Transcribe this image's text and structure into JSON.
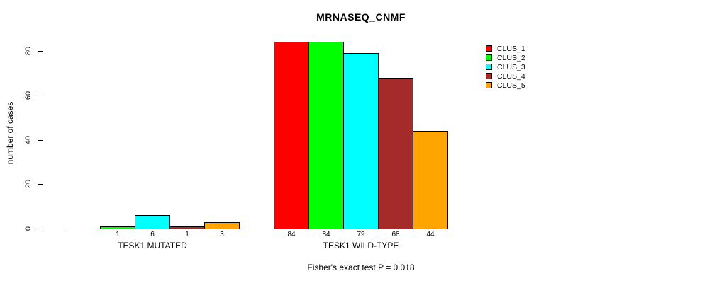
{
  "title": "MRNASEQ_CNMF",
  "chart_data": {
    "type": "bar",
    "title": "MRNASEQ_CNMF",
    "xlabel": "",
    "ylabel": "number of cases",
    "ylim": [
      0,
      84
    ],
    "yticks": [
      0,
      20,
      40,
      60,
      80
    ],
    "grid": false,
    "legend_position": "right",
    "categories": [
      "TESK1 MUTATED",
      "TESK1 WILD-TYPE"
    ],
    "series": [
      {
        "name": "CLUS_1",
        "color": "#FF0000",
        "values": [
          0,
          84
        ]
      },
      {
        "name": "CLUS_2",
        "color": "#00FF00",
        "values": [
          1,
          84
        ]
      },
      {
        "name": "CLUS_3",
        "color": "#00FFFF",
        "values": [
          6,
          79
        ]
      },
      {
        "name": "CLUS_4",
        "color": "#A52A2A",
        "values": [
          1,
          68
        ]
      },
      {
        "name": "CLUS_5",
        "color": "#FFA500",
        "values": [
          3,
          44
        ]
      }
    ],
    "bar_labels": [
      [
        "",
        "1",
        "6",
        "1",
        "3"
      ],
      [
        "84",
        "84",
        "79",
        "68",
        "44"
      ]
    ],
    "footnote": "Fisher's exact test P = 0.018"
  }
}
